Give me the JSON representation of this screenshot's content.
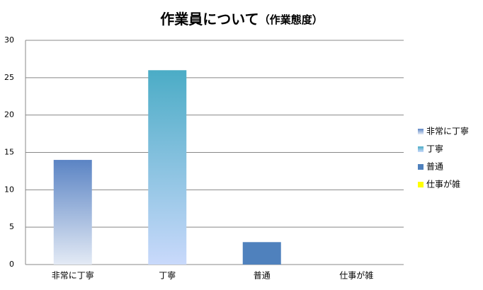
{
  "chart_data": {
    "type": "bar",
    "title": "作業員について",
    "subtitle": "（作業態度）",
    "categories": [
      "非常に丁寧",
      "丁寧",
      "普通",
      "仕事が雑"
    ],
    "values": [
      14,
      26,
      3,
      0
    ],
    "colors": [
      "#5b84c4",
      "#4bacc6",
      "#4f81bd",
      "#ffff00"
    ],
    "ylim": [
      0,
      30
    ],
    "yticks": [
      0,
      5,
      10,
      15,
      20,
      25,
      30
    ],
    "grid": true,
    "legend": "right"
  }
}
